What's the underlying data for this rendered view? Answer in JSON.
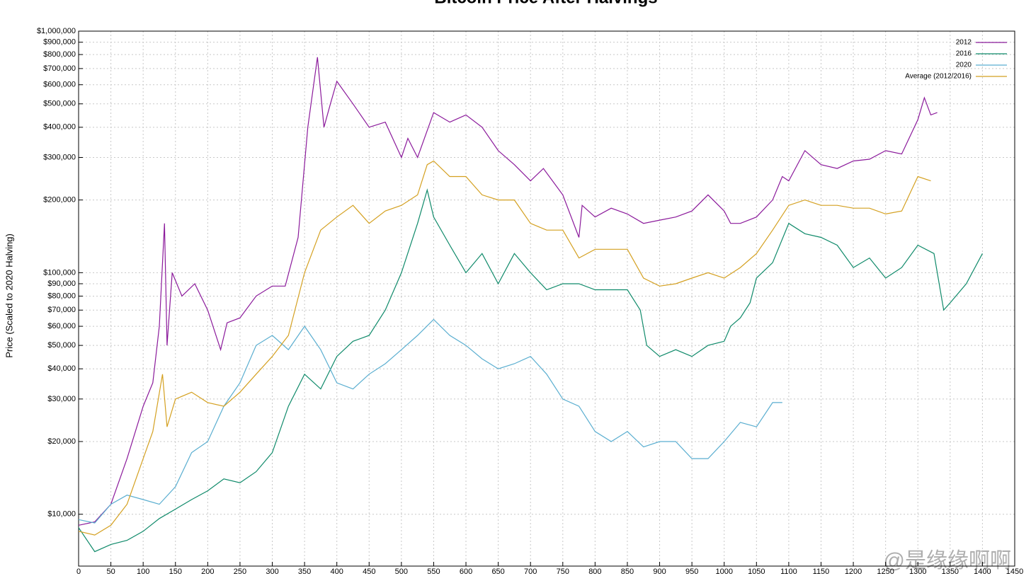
{
  "chart_data": {
    "type": "line",
    "title": "Bitcoin Price After Halvings",
    "y_label": "Price (Scaled to 2020 Halving)",
    "watermark": "@是缘缘啊啊",
    "log_scale_y": true,
    "grid": true,
    "legend": "top right",
    "xlim": [
      0,
      1450
    ],
    "xticks": [
      0,
      50,
      100,
      150,
      200,
      250,
      300,
      350,
      400,
      450,
      500,
      550,
      600,
      650,
      700,
      750,
      800,
      850,
      900,
      950,
      1000,
      1050,
      1100,
      1150,
      1200,
      1250,
      1300,
      1350,
      1400,
      1450
    ],
    "ylim": [
      6100,
      1000000
    ],
    "yticks": [
      {
        "value": 10000,
        "label": "$10,000"
      },
      {
        "value": 20000,
        "label": "$20,000"
      },
      {
        "value": 30000,
        "label": "$30,000"
      },
      {
        "value": 40000,
        "label": "$40,000"
      },
      {
        "value": 50000,
        "label": "$50,000"
      },
      {
        "value": 60000,
        "label": "$60,000"
      },
      {
        "value": 70000,
        "label": "$70,000"
      },
      {
        "value": 80000,
        "label": "$80,000"
      },
      {
        "value": 90000,
        "label": "$90,000"
      },
      {
        "value": 100000,
        "label": "$100,000"
      },
      {
        "value": 200000,
        "label": "$200,000"
      },
      {
        "value": 300000,
        "label": "$300,000"
      },
      {
        "value": 400000,
        "label": "$400,000"
      },
      {
        "value": 500000,
        "label": "$500,000"
      },
      {
        "value": 600000,
        "label": "$600,000"
      },
      {
        "value": 700000,
        "label": "$700,000"
      },
      {
        "value": 800000,
        "label": "$800,000"
      },
      {
        "value": 900000,
        "label": "$900,000"
      },
      {
        "value": 1000000,
        "label": "$1,000,000"
      }
    ],
    "series": [
      {
        "name": "2012",
        "color": "#8b1a9b",
        "x": [
          0,
          25,
          50,
          75,
          100,
          115,
          125,
          133,
          137,
          145,
          160,
          180,
          200,
          220,
          230,
          250,
          275,
          300,
          320,
          340,
          355,
          370,
          380,
          390,
          400,
          425,
          450,
          475,
          500,
          510,
          525,
          550,
          575,
          600,
          625,
          650,
          675,
          700,
          720,
          750,
          775,
          780,
          800,
          825,
          850,
          875,
          900,
          925,
          950,
          975,
          1000,
          1010,
          1025,
          1050,
          1075,
          1090,
          1100,
          1125,
          1150,
          1175,
          1200,
          1225,
          1250,
          1275,
          1300,
          1310,
          1320,
          1330
        ],
        "values": [
          9000,
          9300,
          11000,
          17000,
          28000,
          35000,
          60000,
          160000,
          50000,
          100000,
          80000,
          90000,
          70000,
          48000,
          62000,
          65000,
          80000,
          88000,
          88000,
          140000,
          400000,
          780000,
          400000,
          500000,
          620000,
          500000,
          400000,
          420000,
          300000,
          360000,
          300000,
          460000,
          420000,
          450000,
          400000,
          320000,
          280000,
          240000,
          270000,
          210000,
          140000,
          190000,
          170000,
          185000,
          175000,
          160000,
          165000,
          170000,
          180000,
          210000,
          180000,
          160000,
          160000,
          170000,
          200000,
          250000,
          240000,
          320000,
          280000,
          270000,
          290000,
          295000,
          320000,
          310000,
          430000,
          530000,
          450000,
          460000
        ]
      },
      {
        "name": "2016",
        "color": "#0f8a6a",
        "x": [
          0,
          25,
          50,
          75,
          100,
          125,
          150,
          175,
          200,
          225,
          250,
          275,
          300,
          325,
          350,
          375,
          400,
          425,
          450,
          475,
          500,
          525,
          540,
          550,
          575,
          600,
          625,
          650,
          675,
          700,
          725,
          750,
          775,
          800,
          825,
          850,
          870,
          880,
          900,
          925,
          950,
          975,
          1000,
          1010,
          1025,
          1040,
          1050,
          1075,
          1100,
          1125,
          1150,
          1175,
          1200,
          1225,
          1250,
          1275,
          1300,
          1325,
          1340,
          1350,
          1375,
          1400
        ],
        "values": [
          8800,
          7000,
          7500,
          7800,
          8500,
          9600,
          10500,
          11500,
          12500,
          14000,
          13500,
          15000,
          18000,
          28000,
          38000,
          33000,
          45000,
          52000,
          55000,
          70000,
          100000,
          160000,
          220000,
          170000,
          130000,
          100000,
          120000,
          90000,
          120000,
          100000,
          85000,
          90000,
          90000,
          85000,
          85000,
          85000,
          70000,
          50000,
          45000,
          48000,
          45000,
          50000,
          52000,
          60000,
          65000,
          75000,
          95000,
          110000,
          160000,
          145000,
          140000,
          130000,
          105000,
          115000,
          95000,
          105000,
          130000,
          120000,
          70000,
          75000,
          90000,
          120000
        ]
      },
      {
        "name": "2020",
        "color": "#5aaed0",
        "x": [
          0,
          25,
          50,
          75,
          100,
          125,
          150,
          175,
          200,
          225,
          250,
          275,
          300,
          325,
          350,
          375,
          400,
          425,
          450,
          475,
          500,
          525,
          550,
          575,
          600,
          625,
          650,
          675,
          700,
          725,
          750,
          775,
          800,
          825,
          850,
          875,
          900,
          925,
          950,
          975,
          1000,
          1025,
          1050,
          1075,
          1090
        ],
        "values": [
          9500,
          9200,
          11000,
          12000,
          11500,
          11000,
          13000,
          18000,
          20000,
          28000,
          35000,
          50000,
          55000,
          48000,
          60000,
          48000,
          35000,
          33000,
          38000,
          42000,
          48000,
          55000,
          64000,
          55000,
          50000,
          44000,
          40000,
          42000,
          45000,
          38000,
          30000,
          28000,
          22000,
          20000,
          22000,
          19000,
          20000,
          20000,
          17000,
          17000,
          20000,
          24000,
          23000,
          29000,
          29000
        ]
      },
      {
        "name": "Average (2012/2016)",
        "color": "#d4a020",
        "x": [
          0,
          25,
          50,
          75,
          100,
          115,
          130,
          137,
          150,
          175,
          200,
          225,
          250,
          275,
          300,
          325,
          350,
          375,
          400,
          425,
          450,
          475,
          500,
          525,
          540,
          550,
          575,
          600,
          625,
          650,
          675,
          700,
          725,
          750,
          775,
          800,
          825,
          850,
          875,
          900,
          925,
          950,
          975,
          1000,
          1025,
          1050,
          1075,
          1100,
          1125,
          1150,
          1175,
          1200,
          1225,
          1250,
          1275,
          1300,
          1320
        ],
        "values": [
          8500,
          8200,
          9000,
          11000,
          17000,
          22000,
          38000,
          23000,
          30000,
          32000,
          29000,
          28000,
          32000,
          38000,
          45000,
          55000,
          100000,
          150000,
          170000,
          190000,
          160000,
          180000,
          190000,
          210000,
          280000,
          290000,
          250000,
          250000,
          210000,
          200000,
          200000,
          160000,
          150000,
          150000,
          115000,
          125000,
          125000,
          125000,
          95000,
          88000,
          90000,
          95000,
          100000,
          95000,
          105000,
          120000,
          150000,
          190000,
          200000,
          190000,
          190000,
          185000,
          185000,
          175000,
          180000,
          250000,
          240000
        ]
      }
    ]
  }
}
